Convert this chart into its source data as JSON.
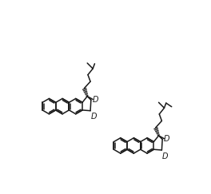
{
  "background_color": "#ffffff",
  "line_color": "#1a1a1a",
  "line_width": 1.1,
  "figsize": [
    2.64,
    2.43
  ],
  "dpi": 100,
  "label_D": "D",
  "font_size_D": 7
}
